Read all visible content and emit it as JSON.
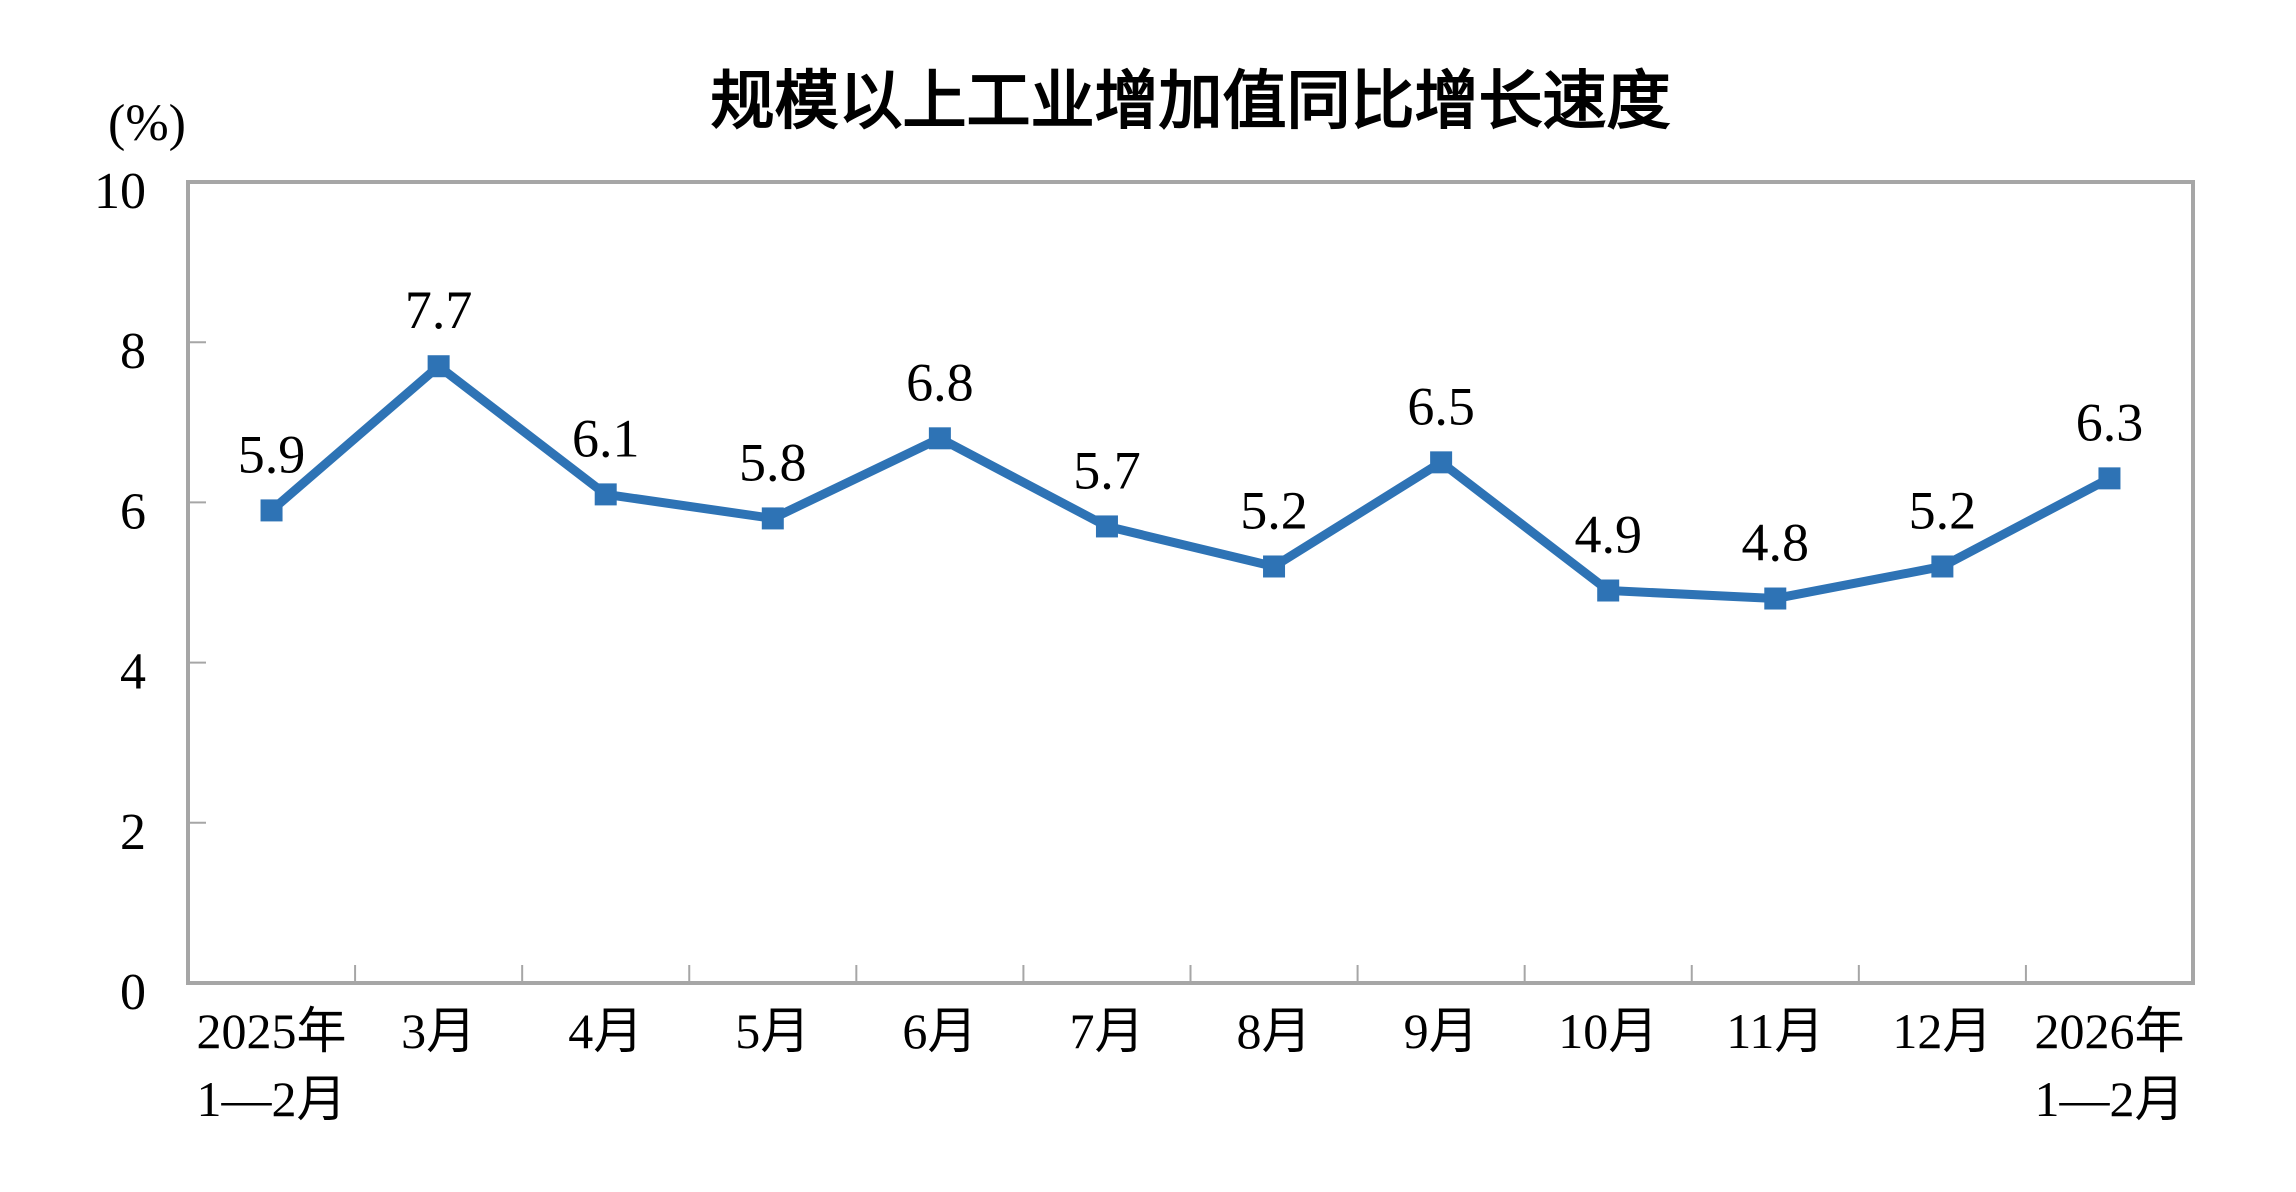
{
  "chart_data": {
    "type": "line",
    "title": "规模以上工业增加值同比增长速度",
    "unit_label": "(%)",
    "categories": [
      "2025年\n1—2月",
      "3月",
      "4月",
      "5月",
      "6月",
      "7月",
      "8月",
      "9月",
      "10月",
      "11月",
      "12月",
      "2026年\n1—2月"
    ],
    "values": [
      5.9,
      7.7,
      6.1,
      5.8,
      6.8,
      5.7,
      5.2,
      6.5,
      4.9,
      4.8,
      5.2,
      6.3
    ],
    "data_labels": [
      "5.9",
      "7.7",
      "6.1",
      "5.8",
      "6.8",
      "5.7",
      "5.2",
      "6.5",
      "4.9",
      "4.8",
      "5.2",
      "6.3"
    ],
    "xlabel": "",
    "ylabel": "(%)",
    "ylim": [
      0,
      10
    ],
    "yticks": [
      0,
      2,
      4,
      6,
      8,
      10
    ],
    "grid": false,
    "legend": "none",
    "marker": "square",
    "colors": {
      "line": "#2E73B5",
      "marker": "#2E73B5",
      "axis": "#A6A6A6",
      "text": "#000000",
      "background": "#FFFFFF"
    }
  }
}
